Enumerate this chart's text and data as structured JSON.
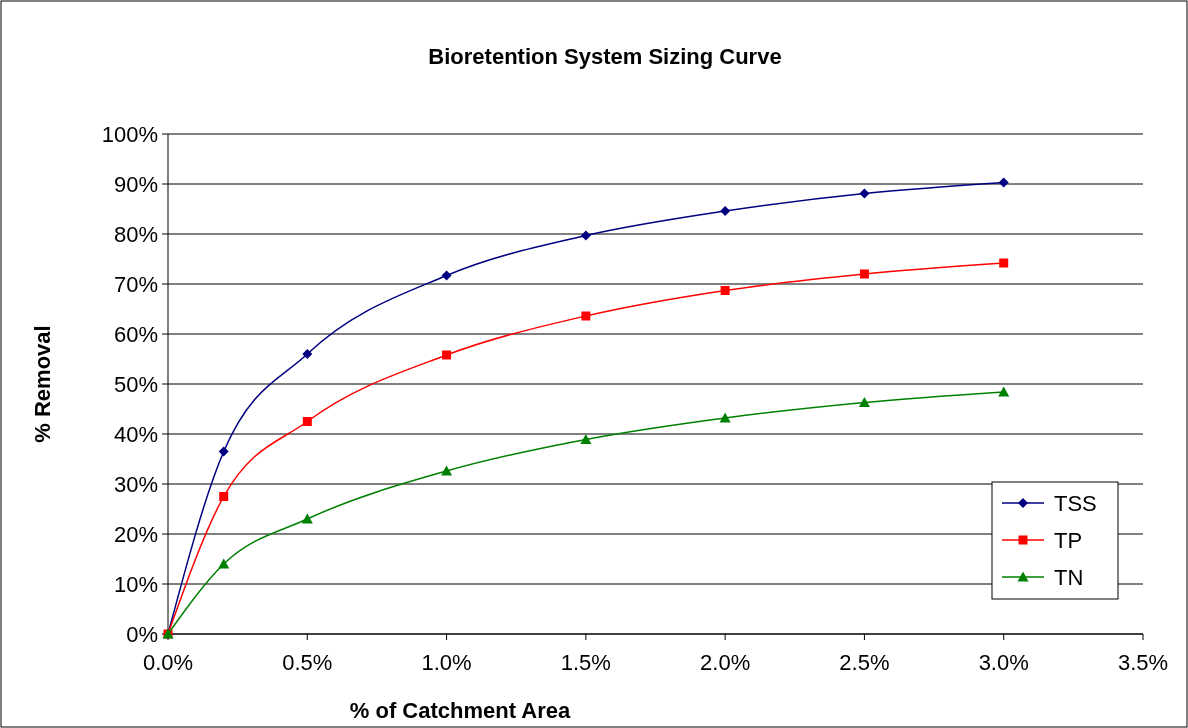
{
  "chart_data": {
    "type": "line",
    "title": "Bioretention System Sizing Curve",
    "xlabel": "% of Catchment Area",
    "ylabel": "% Removal",
    "x": [
      0,
      0.2,
      0.5,
      1,
      1.5,
      2,
      2.5,
      3
    ],
    "series": [
      {
        "name": "TSS",
        "color": "#000080",
        "marker": "diamond",
        "values": [
          0,
          36.5,
          56,
          71.7,
          79.7,
          84.6,
          88.1,
          90.3
        ]
      },
      {
        "name": "TP",
        "color": "#ff0000",
        "marker": "square",
        "values": [
          0,
          27.5,
          42.5,
          55.8,
          63.6,
          68.7,
          72,
          74.2
        ]
      },
      {
        "name": "TN",
        "color": "#008000",
        "marker": "triangle",
        "values": [
          0,
          14,
          23,
          32.6,
          38.9,
          43.2,
          46.3,
          48.4
        ]
      }
    ],
    "xlim": [
      0,
      3.5
    ],
    "xticks": [
      {
        "value": 0,
        "label": "0.0%"
      },
      {
        "value": 0.5,
        "label": "0.5%"
      },
      {
        "value": 1,
        "label": "1.0%"
      },
      {
        "value": 1.5,
        "label": "1.5%"
      },
      {
        "value": 2,
        "label": "2.0%"
      },
      {
        "value": 2.5,
        "label": "2.5%"
      },
      {
        "value": 3,
        "label": "3.0%"
      },
      {
        "value": 3.5,
        "label": "3.5%"
      }
    ],
    "ylim": [
      0,
      100
    ],
    "yticks": [
      {
        "value": 0,
        "label": "0%"
      },
      {
        "value": 10,
        "label": "10%"
      },
      {
        "value": 20,
        "label": "20%"
      },
      {
        "value": 30,
        "label": "30%"
      },
      {
        "value": 40,
        "label": "40%"
      },
      {
        "value": 50,
        "label": "50%"
      },
      {
        "value": 60,
        "label": "60%"
      },
      {
        "value": 70,
        "label": "70%"
      },
      {
        "value": 80,
        "label": "80%"
      },
      {
        "value": 90,
        "label": "90%"
      },
      {
        "value": 100,
        "label": "100%"
      }
    ],
    "grid": "y",
    "legend": "bottom right",
    "line_style": "solid"
  }
}
